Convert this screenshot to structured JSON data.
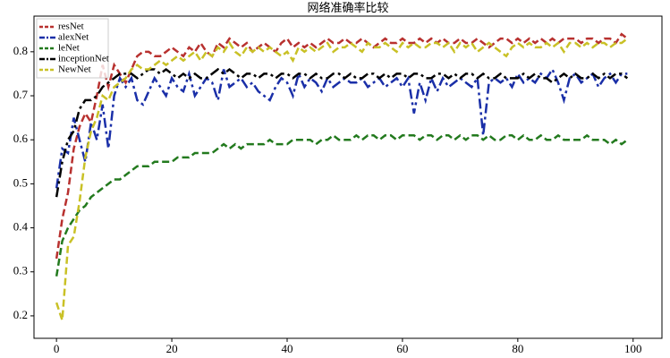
{
  "chart_data": {
    "type": "line",
    "title": "网络准确率比较",
    "x": [
      0,
      1,
      2,
      3,
      4,
      5,
      6,
      7,
      8,
      9,
      10,
      11,
      12,
      13,
      14,
      15,
      16,
      17,
      18,
      19,
      20,
      21,
      22,
      23,
      24,
      25,
      26,
      27,
      28,
      29,
      30,
      31,
      32,
      33,
      34,
      35,
      36,
      37,
      38,
      39,
      40,
      41,
      42,
      43,
      44,
      45,
      46,
      47,
      48,
      49,
      50,
      51,
      52,
      53,
      54,
      55,
      56,
      57,
      58,
      59,
      60,
      61,
      62,
      63,
      64,
      65,
      66,
      67,
      68,
      69,
      70,
      71,
      72,
      73,
      74,
      75,
      76,
      77,
      78,
      79,
      80,
      81,
      82,
      83,
      84,
      85,
      86,
      87,
      88,
      89,
      90,
      91,
      92,
      93,
      94,
      95,
      96,
      97,
      98,
      99
    ],
    "series": [
      {
        "name": "resNet",
        "color": "#b8312f",
        "linestyle": "dashed",
        "values": [
          0.33,
          0.42,
          0.48,
          0.58,
          0.63,
          0.66,
          0.64,
          0.7,
          0.77,
          0.72,
          0.77,
          0.75,
          0.73,
          0.76,
          0.79,
          0.8,
          0.8,
          0.79,
          0.79,
          0.8,
          0.81,
          0.8,
          0.79,
          0.81,
          0.8,
          0.82,
          0.8,
          0.79,
          0.82,
          0.81,
          0.83,
          0.82,
          0.81,
          0.82,
          0.8,
          0.81,
          0.82,
          0.81,
          0.8,
          0.82,
          0.83,
          0.81,
          0.82,
          0.81,
          0.82,
          0.81,
          0.82,
          0.83,
          0.82,
          0.82,
          0.83,
          0.82,
          0.82,
          0.83,
          0.82,
          0.81,
          0.82,
          0.83,
          0.82,
          0.82,
          0.83,
          0.82,
          0.82,
          0.83,
          0.82,
          0.83,
          0.82,
          0.83,
          0.82,
          0.82,
          0.83,
          0.82,
          0.82,
          0.83,
          0.82,
          0.81,
          0.82,
          0.83,
          0.83,
          0.82,
          0.83,
          0.82,
          0.83,
          0.82,
          0.83,
          0.82,
          0.83,
          0.82,
          0.83,
          0.83,
          0.83,
          0.82,
          0.83,
          0.83,
          0.82,
          0.83,
          0.83,
          0.82,
          0.84,
          0.83
        ]
      },
      {
        "name": "alexNet",
        "color": "#1a2fa8",
        "linestyle": "dashdot",
        "values": [
          0.49,
          0.58,
          0.57,
          0.65,
          0.6,
          0.55,
          0.64,
          0.6,
          0.68,
          0.58,
          0.7,
          0.74,
          0.72,
          0.74,
          0.69,
          0.68,
          0.71,
          0.74,
          0.72,
          0.7,
          0.74,
          0.72,
          0.71,
          0.75,
          0.7,
          0.72,
          0.74,
          0.73,
          0.69,
          0.76,
          0.72,
          0.73,
          0.74,
          0.72,
          0.73,
          0.71,
          0.7,
          0.69,
          0.72,
          0.74,
          0.73,
          0.7,
          0.75,
          0.72,
          0.74,
          0.73,
          0.71,
          0.74,
          0.72,
          0.73,
          0.74,
          0.73,
          0.73,
          0.74,
          0.72,
          0.73,
          0.74,
          0.72,
          0.73,
          0.74,
          0.72,
          0.74,
          0.66,
          0.73,
          0.69,
          0.74,
          0.71,
          0.74,
          0.72,
          0.73,
          0.74,
          0.73,
          0.72,
          0.74,
          0.61,
          0.73,
          0.74,
          0.73,
          0.74,
          0.72,
          0.75,
          0.73,
          0.74,
          0.73,
          0.75,
          0.74,
          0.76,
          0.73,
          0.69,
          0.74,
          0.75,
          0.73,
          0.74,
          0.75,
          0.72,
          0.74,
          0.75,
          0.73,
          0.75,
          0.75
        ]
      },
      {
        "name": "leNet",
        "color": "#237a1e",
        "linestyle": "dashed",
        "values": [
          0.29,
          0.37,
          0.4,
          0.42,
          0.44,
          0.45,
          0.47,
          0.48,
          0.49,
          0.5,
          0.51,
          0.51,
          0.52,
          0.53,
          0.54,
          0.54,
          0.54,
          0.55,
          0.55,
          0.55,
          0.55,
          0.56,
          0.56,
          0.56,
          0.57,
          0.57,
          0.57,
          0.57,
          0.58,
          0.59,
          0.58,
          0.59,
          0.58,
          0.59,
          0.59,
          0.59,
          0.59,
          0.6,
          0.59,
          0.59,
          0.59,
          0.6,
          0.6,
          0.6,
          0.6,
          0.59,
          0.6,
          0.6,
          0.61,
          0.6,
          0.6,
          0.6,
          0.61,
          0.6,
          0.61,
          0.61,
          0.6,
          0.61,
          0.61,
          0.6,
          0.61,
          0.61,
          0.61,
          0.6,
          0.61,
          0.61,
          0.6,
          0.61,
          0.61,
          0.6,
          0.61,
          0.6,
          0.61,
          0.61,
          0.6,
          0.61,
          0.6,
          0.6,
          0.61,
          0.61,
          0.6,
          0.61,
          0.6,
          0.6,
          0.61,
          0.6,
          0.6,
          0.61,
          0.6,
          0.6,
          0.6,
          0.6,
          0.61,
          0.6,
          0.6,
          0.6,
          0.59,
          0.6,
          0.59,
          0.6
        ]
      },
      {
        "name": "inceptionNet",
        "color": "#000000",
        "linestyle": "dashdot",
        "values": [
          0.47,
          0.55,
          0.6,
          0.62,
          0.67,
          0.69,
          0.69,
          0.7,
          0.72,
          0.73,
          0.74,
          0.75,
          0.75,
          0.75,
          0.74,
          0.75,
          0.76,
          0.76,
          0.75,
          0.76,
          0.75,
          0.74,
          0.75,
          0.74,
          0.75,
          0.74,
          0.74,
          0.75,
          0.76,
          0.75,
          0.76,
          0.75,
          0.74,
          0.75,
          0.75,
          0.74,
          0.75,
          0.75,
          0.74,
          0.75,
          0.75,
          0.74,
          0.75,
          0.75,
          0.74,
          0.75,
          0.74,
          0.74,
          0.75,
          0.75,
          0.74,
          0.75,
          0.74,
          0.74,
          0.75,
          0.75,
          0.74,
          0.75,
          0.74,
          0.75,
          0.75,
          0.74,
          0.75,
          0.75,
          0.74,
          0.74,
          0.75,
          0.75,
          0.74,
          0.75,
          0.74,
          0.75,
          0.75,
          0.74,
          0.75,
          0.74,
          0.74,
          0.75,
          0.74,
          0.74,
          0.74,
          0.75,
          0.74,
          0.75,
          0.74,
          0.74,
          0.73,
          0.74,
          0.75,
          0.74,
          0.75,
          0.74,
          0.74,
          0.75,
          0.74,
          0.75,
          0.74,
          0.75,
          0.75,
          0.74
        ]
      },
      {
        "name": "NewNet",
        "color": "#c9c126",
        "linestyle": "dashed",
        "values": [
          0.23,
          0.19,
          0.36,
          0.38,
          0.46,
          0.56,
          0.62,
          0.65,
          0.7,
          0.69,
          0.72,
          0.73,
          0.74,
          0.76,
          0.77,
          0.76,
          0.76,
          0.77,
          0.78,
          0.77,
          0.78,
          0.79,
          0.78,
          0.79,
          0.8,
          0.78,
          0.8,
          0.79,
          0.81,
          0.8,
          0.82,
          0.8,
          0.79,
          0.81,
          0.8,
          0.81,
          0.8,
          0.81,
          0.8,
          0.79,
          0.8,
          0.78,
          0.81,
          0.8,
          0.81,
          0.8,
          0.81,
          0.82,
          0.8,
          0.81,
          0.81,
          0.82,
          0.81,
          0.8,
          0.82,
          0.81,
          0.81,
          0.82,
          0.81,
          0.8,
          0.82,
          0.81,
          0.82,
          0.81,
          0.81,
          0.82,
          0.82,
          0.81,
          0.82,
          0.8,
          0.82,
          0.81,
          0.82,
          0.8,
          0.81,
          0.82,
          0.81,
          0.8,
          0.79,
          0.81,
          0.82,
          0.81,
          0.82,
          0.81,
          0.81,
          0.82,
          0.81,
          0.82,
          0.8,
          0.82,
          0.82,
          0.81,
          0.82,
          0.81,
          0.82,
          0.82,
          0.81,
          0.82,
          0.82,
          0.83
        ]
      }
    ],
    "xlim": [
      -3.9,
      105
    ],
    "xticks": [
      0,
      20,
      40,
      60,
      80,
      100
    ],
    "ylim": [
      0.149,
      0.881
    ],
    "yticks": [
      0.2,
      0.3,
      0.4,
      0.5,
      0.6,
      0.7,
      0.8
    ],
    "legend": "upper left"
  }
}
